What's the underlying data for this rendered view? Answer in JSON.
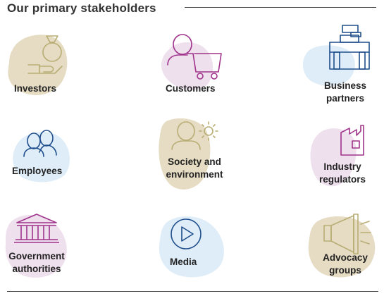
{
  "title": "Our primary stakeholders",
  "colors": {
    "olive_blob": "#e6dcc3",
    "pink_blob": "#efe0ee",
    "blue_blob": "#dfedf8",
    "olive_icon": "#b8ad74",
    "purple_icon": "#a0338b",
    "navy_icon": "#1f4e8c"
  },
  "stakeholders": [
    {
      "label": "Investors",
      "icon": "investor-icon"
    },
    {
      "label": "Customers",
      "icon": "customer-cart-icon"
    },
    {
      "label_lines": [
        "Business",
        "partners"
      ],
      "icon": "briefcases-icon"
    },
    {
      "label": "Employees",
      "icon": "employees-icon"
    },
    {
      "label_lines": [
        "Society and",
        "environment"
      ],
      "icon": "society-sun-icon"
    },
    {
      "label_lines": [
        "Industry",
        "regulators"
      ],
      "icon": "factory-icon"
    },
    {
      "label_lines": [
        "Government",
        "authorities"
      ],
      "icon": "government-building-icon"
    },
    {
      "label": "Media",
      "icon": "play-icon"
    },
    {
      "label_lines": [
        "Advocacy",
        "groups"
      ],
      "icon": "megaphone-icon"
    }
  ]
}
